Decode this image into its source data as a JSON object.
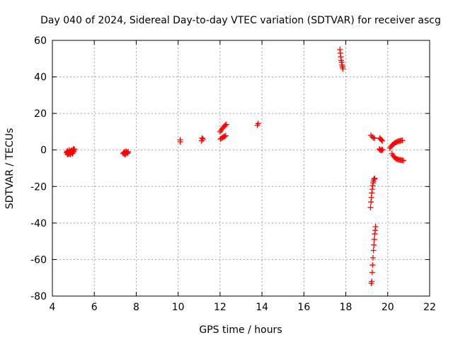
{
  "chart_data": {
    "type": "scatter",
    "title": "Day 040 of 2024, Sidereal Day-to-day VTEC variation (SDTVAR) for receiver ascg",
    "xlabel": "GPS time / hours",
    "ylabel": "SDTVAR / TECUs",
    "xlim": [
      4,
      22
    ],
    "ylim": [
      -80,
      60
    ],
    "xticks": [
      4,
      6,
      8,
      10,
      12,
      14,
      16,
      18,
      20,
      22
    ],
    "yticks": [
      -80,
      -60,
      -40,
      -20,
      0,
      20,
      40,
      60
    ],
    "grid": true,
    "marker": "+",
    "series": [
      {
        "name": "SDTVAR",
        "color": "#ff0000",
        "x": [
          4.68,
          4.72,
          4.75,
          4.78,
          4.8,
          4.83,
          4.86,
          4.89,
          4.92,
          4.95,
          4.98,
          5.01,
          4.72,
          4.76,
          4.8,
          4.84,
          4.88,
          4.92,
          4.96,
          5.0,
          4.7,
          4.78,
          4.86,
          4.94,
          5.02,
          5.05,
          7.38,
          7.42,
          7.46,
          7.5,
          7.54,
          7.58,
          7.62,
          7.4,
          7.46,
          7.52,
          7.58,
          10.1,
          10.1,
          11.12,
          11.18,
          11.14,
          12.0,
          12.05,
          12.1,
          12.15,
          12.2,
          12.25,
          12.3,
          12.02,
          12.07,
          12.12,
          12.17,
          12.22,
          12.27,
          13.78,
          13.82,
          17.72,
          17.74,
          17.76,
          17.78,
          17.8,
          17.82,
          17.84,
          17.86,
          19.18,
          19.2,
          19.22,
          19.24,
          19.26,
          19.28,
          19.3,
          19.32,
          19.34,
          19.36,
          19.38,
          19.24,
          19.26,
          19.28,
          19.3,
          19.32,
          19.34,
          19.36,
          19.38,
          19.4,
          19.42,
          19.22,
          19.2,
          19.26,
          19.32,
          19.38,
          19.62,
          19.66,
          19.7,
          19.74,
          19.6,
          19.64,
          19.68,
          19.72,
          19.76,
          20.1,
          20.15,
          20.2,
          20.25,
          20.3,
          20.35,
          20.4,
          20.45,
          20.5,
          20.55,
          20.6,
          20.65,
          20.7,
          20.2,
          20.25,
          20.3,
          20.35,
          20.4,
          20.45,
          20.5,
          20.55,
          20.6,
          20.65,
          20.7,
          20.75
        ],
        "y": [
          -1.5,
          -0.5,
          -2,
          -1,
          0,
          -1.5,
          -2.5,
          -0.5,
          -1,
          -2,
          0,
          0.5,
          -2.5,
          -1.5,
          -0.8,
          -2,
          -1.2,
          -0.2,
          -1.8,
          -1,
          -1,
          -2.2,
          -0.8,
          -1.6,
          -0.4,
          0.5,
          -2,
          -1.5,
          -1,
          -2.2,
          -1.2,
          -1.8,
          -1,
          -1.5,
          -2.5,
          -0.8,
          -1.6,
          4.5,
          5.5,
          5,
          6,
          6.5,
          10,
          10.8,
          11.6,
          12.3,
          13,
          13.6,
          14,
          6,
          6.4,
          6.8,
          7.2,
          7.5,
          7.8,
          13.5,
          14.5,
          55,
          53,
          51,
          49,
          48,
          46.5,
          45.5,
          44.5,
          -31.5,
          -28.5,
          -26,
          -23.5,
          -21.5,
          -19.5,
          -18,
          -17,
          -16,
          -16,
          -15.5,
          -72,
          -67,
          -63,
          -59,
          -55,
          -52,
          -49,
          -46,
          -44,
          -42,
          -73,
          8,
          7.2,
          6.6,
          6.4,
          6.5,
          6,
          5.5,
          5,
          0.5,
          0,
          -0.3,
          0.2,
          0,
          1,
          1.8,
          2.5,
          3,
          3.5,
          4,
          4.2,
          4.5,
          4.8,
          5,
          5,
          5.2,
          5.2,
          -2,
          -3,
          -3.8,
          -4.3,
          -4.8,
          -5,
          -5.2,
          -5.4,
          -5.5,
          -5.6,
          -5.7,
          -5.8
        ]
      }
    ]
  }
}
